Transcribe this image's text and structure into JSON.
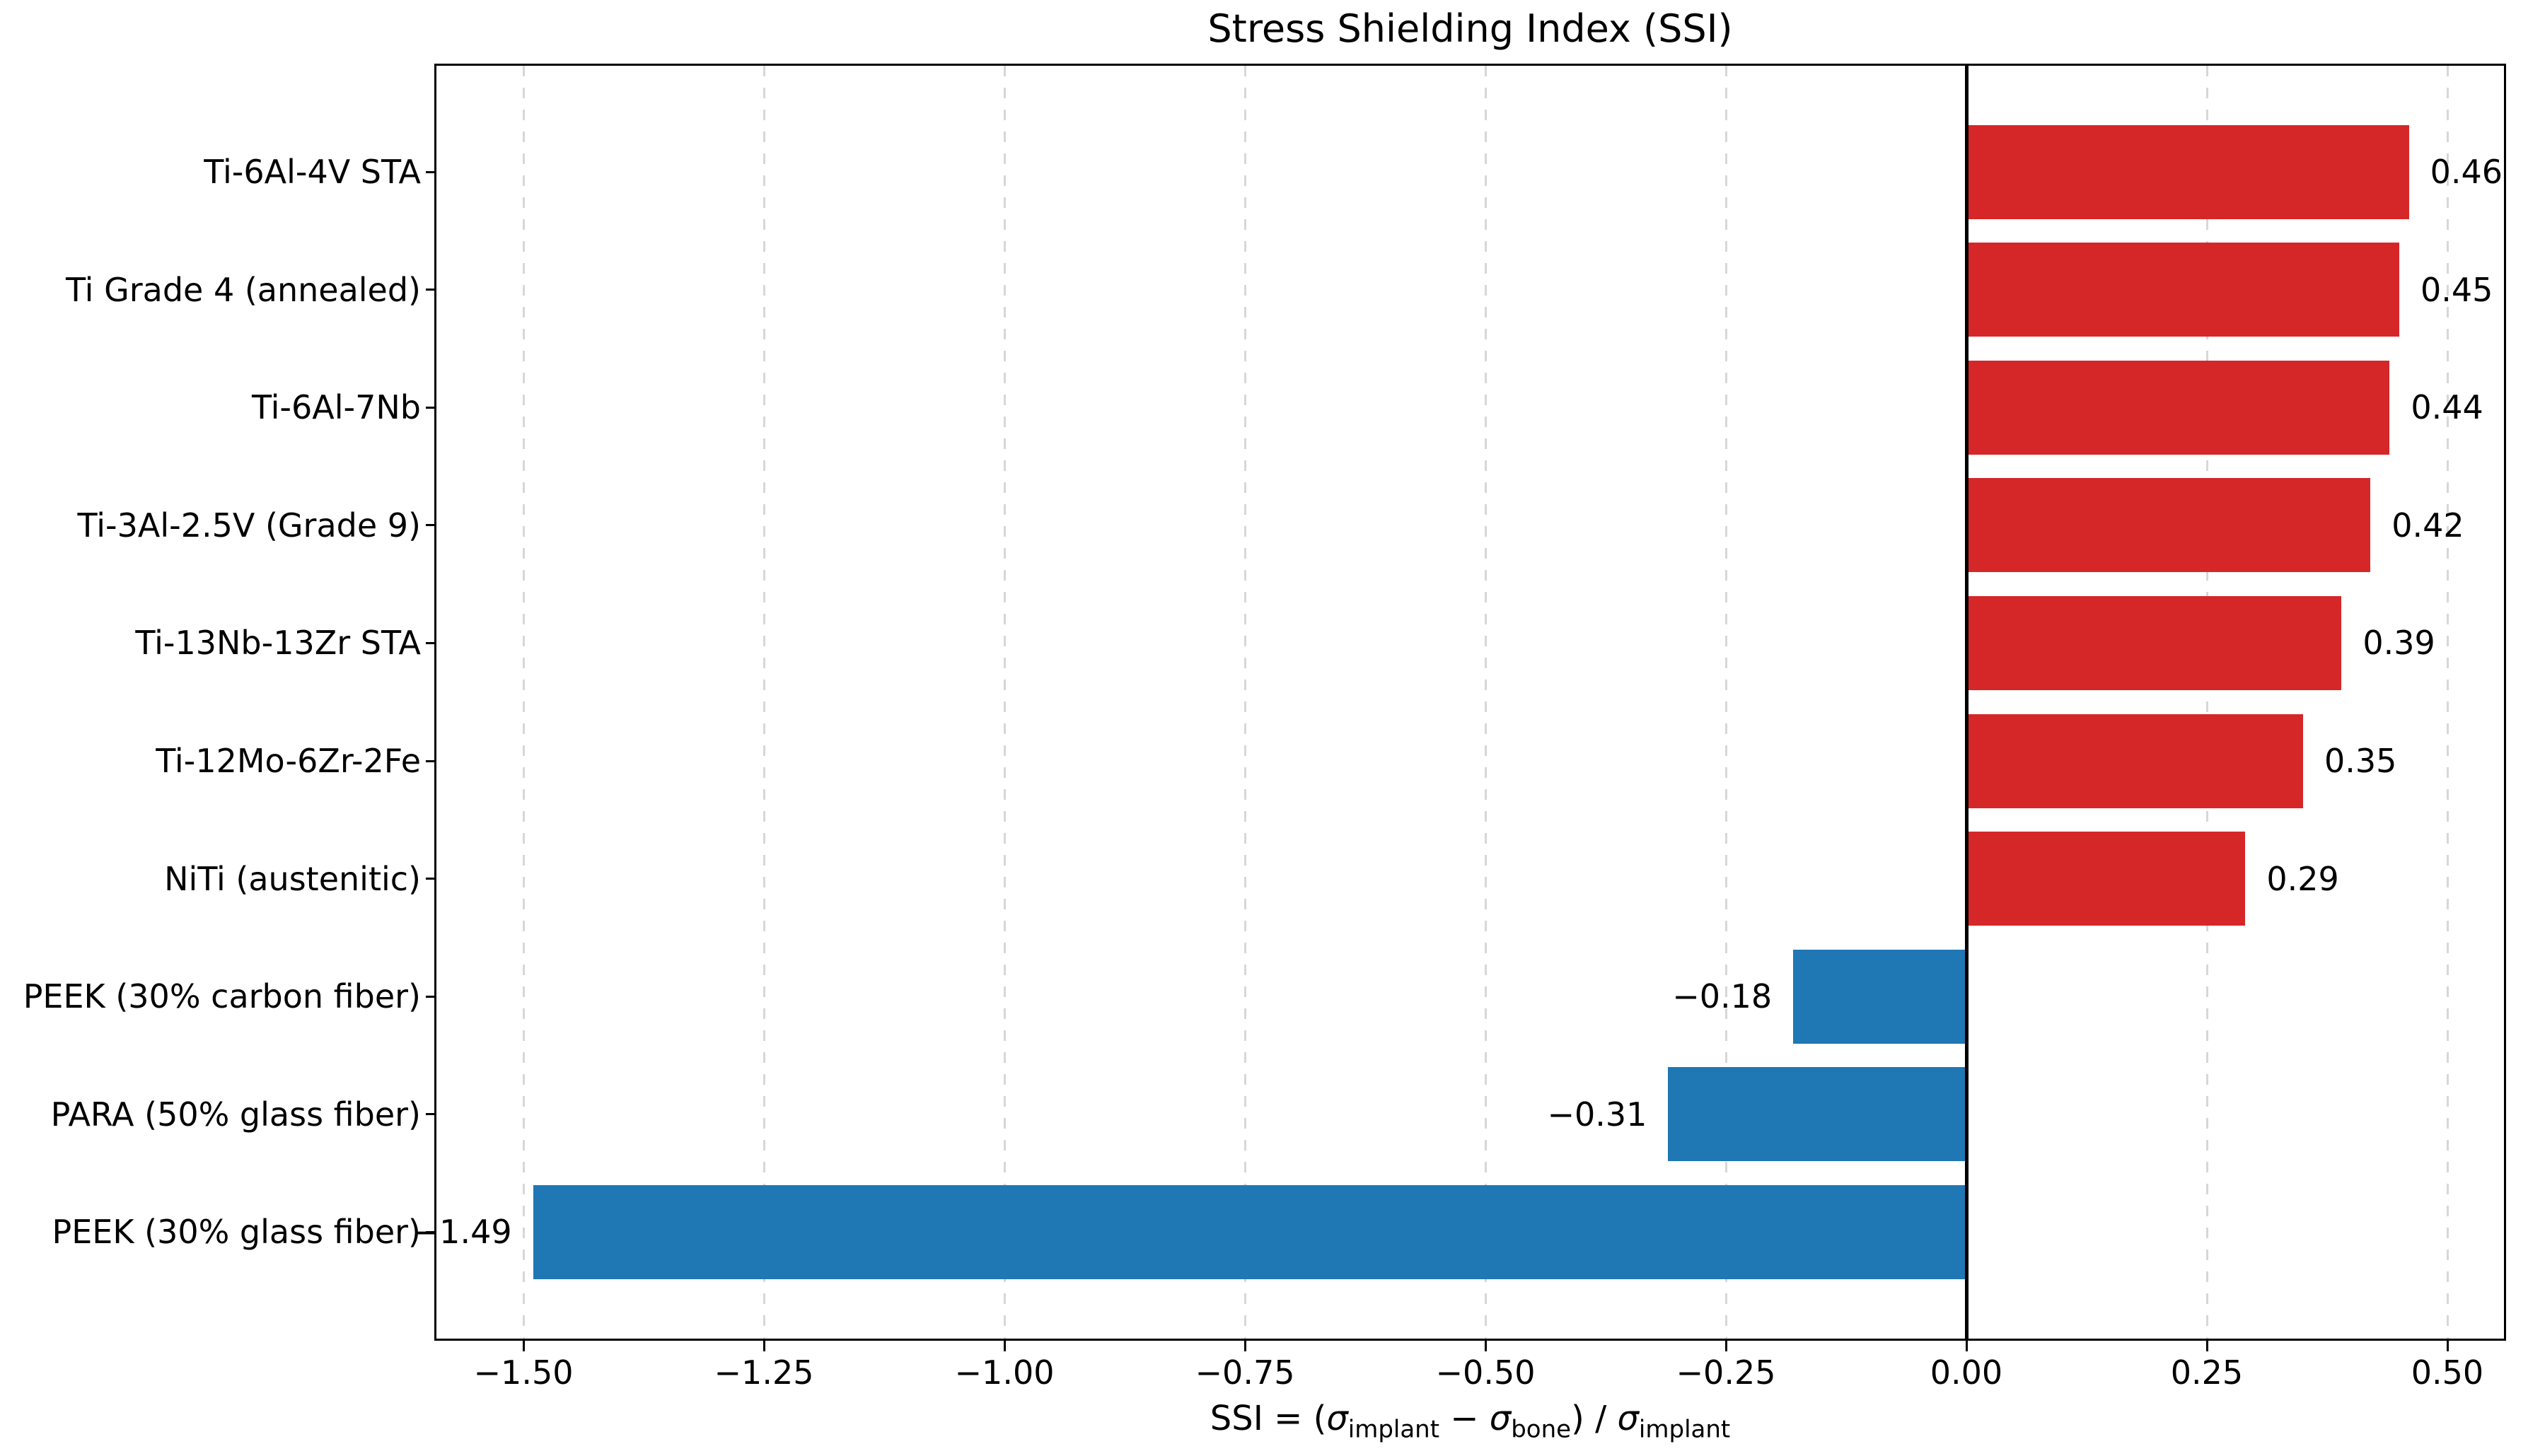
{
  "title": "Stress Shielding Index (SSI)",
  "xlabel": {
    "prefix": "SSI = (",
    "sigma1": "σ",
    "sub1": "implant",
    "minus": " − ",
    "sigma2": "σ",
    "sub2": "bone",
    "middle": ") / ",
    "sigma3": "σ",
    "sub3": "implant"
  },
  "chart_data": {
    "type": "bar",
    "orientation": "horizontal",
    "title": "Stress Shielding Index (SSI)",
    "xlabel_plain": "SSI = (σ_implant − σ_bone) / σ_implant",
    "categories": [
      "Ti-6Al-4V STA",
      "Ti Grade 4 (annealed)",
      "Ti-6Al-7Nb",
      "Ti-3Al-2.5V (Grade 9)",
      "Ti-13Nb-13Zr STA",
      "Ti-12Mo-6Zr-2Fe",
      "NiTi (austenitic)",
      "PEEK (30% carbon fiber)",
      "PARA (50% glass fiber)",
      "PEEK (30% glass fiber)"
    ],
    "values": [
      0.46,
      0.45,
      0.44,
      0.42,
      0.39,
      0.35,
      0.29,
      -0.18,
      -0.31,
      -1.49
    ],
    "value_labels": [
      "0.46",
      "0.45",
      "0.44",
      "0.42",
      "0.39",
      "0.35",
      "0.29",
      "−0.18",
      "−0.31",
      "−1.49"
    ],
    "positive_color": "#d62728",
    "negative_color": "#1f77b4",
    "grid_color": "#d7d7d7",
    "grid_style": "dashed vertical",
    "zero_line": true,
    "zero_line_color": "#000000",
    "xlim": [
      -1.59,
      0.56
    ],
    "xticks": [
      -1.5,
      -1.25,
      -1.0,
      -0.75,
      -0.5,
      -0.25,
      0.0,
      0.25,
      0.5
    ],
    "xtick_labels": [
      "−1.50",
      "−1.25",
      "−1.00",
      "−0.75",
      "−0.50",
      "−0.25",
      "0.00",
      "0.25",
      "0.50"
    ]
  }
}
